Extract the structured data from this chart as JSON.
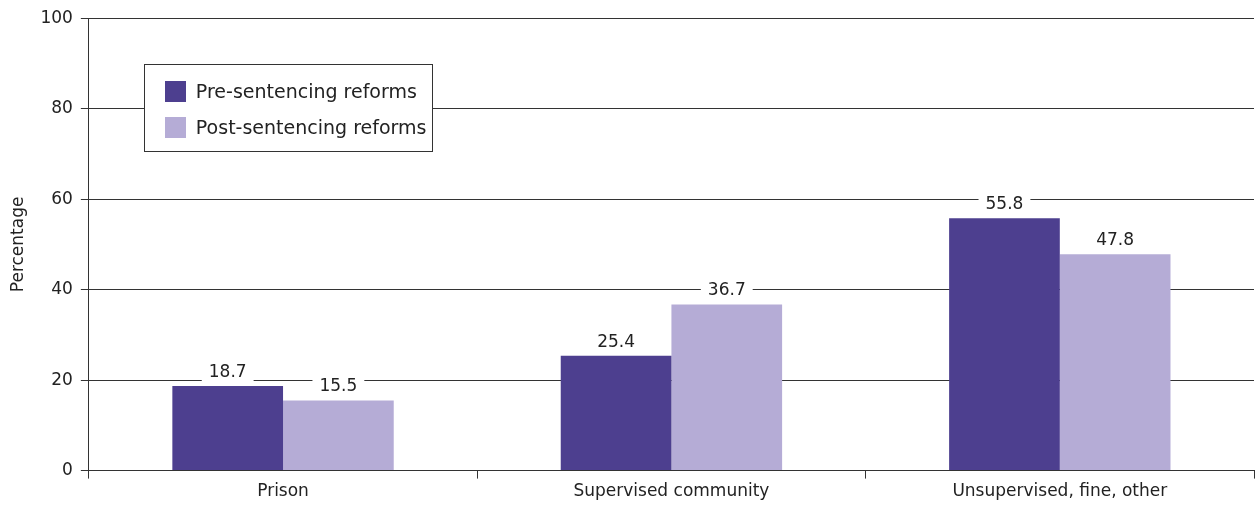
{
  "chart_data": {
    "type": "bar",
    "ylabel": "Percentage",
    "categories": [
      "Prison",
      "Supervised community",
      "Unsupervised, fine, other"
    ],
    "series": [
      {
        "name": "Pre-sentencing reforms",
        "color": "#4d3f8f",
        "values": [
          18.7,
          25.4,
          55.8
        ]
      },
      {
        "name": "Post-sentencing reforms",
        "color": "#b5acd6",
        "values": [
          15.5,
          36.7,
          47.8
        ]
      }
    ],
    "ylim": [
      0,
      100
    ],
    "yticks": [
      0,
      20,
      40,
      60,
      80,
      100
    ],
    "grid": "y",
    "legend": "top left",
    "data_labels": true
  }
}
